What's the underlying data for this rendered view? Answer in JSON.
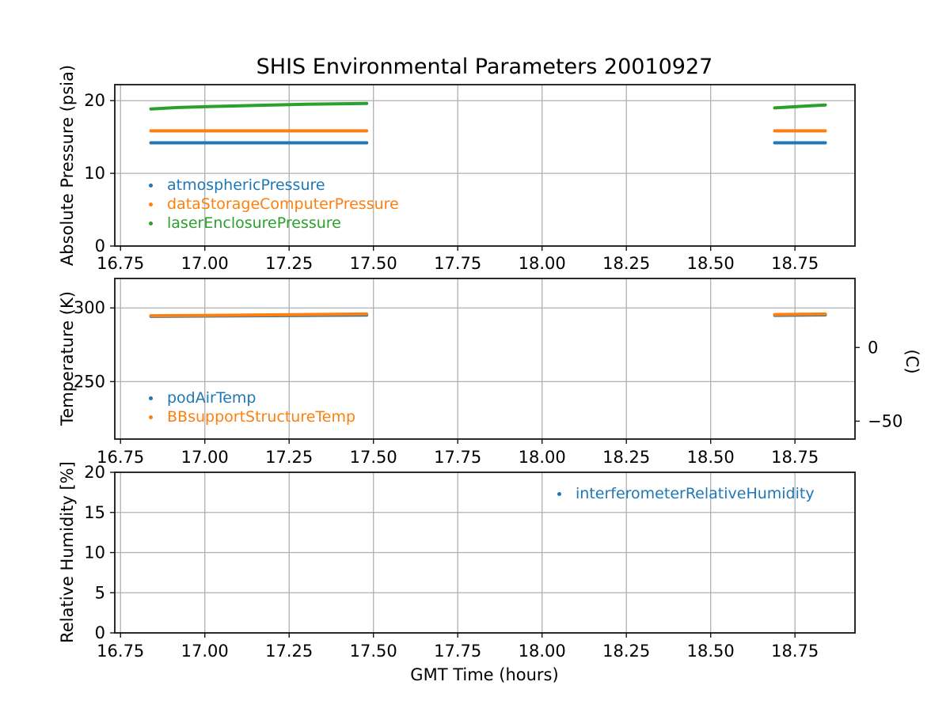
{
  "figure": {
    "title": "SHIS Environmental Parameters 20010927",
    "xlabel": "GMT Time (hours)",
    "background": "#ffffff",
    "grid_color": "#b0b0b0",
    "spine_color": "#141414"
  },
  "chart_data": [
    {
      "id": "pressure",
      "type": "scatter",
      "title": "SHIS Environmental Parameters 20010927",
      "ylabel": "Absolute Pressure (psia)",
      "xlim": [
        16.733,
        18.928
      ],
      "ylim": [
        0,
        22.2
      ],
      "grid": true,
      "legend_location": "lower left inside",
      "xticks": [
        {
          "label": "16.75",
          "value": 16.75
        },
        {
          "label": "17.00",
          "value": 17.0
        },
        {
          "label": "17.25",
          "value": 17.25
        },
        {
          "label": "17.50",
          "value": 17.5
        },
        {
          "label": "17.75",
          "value": 17.75
        },
        {
          "label": "18.00",
          "value": 18.0
        },
        {
          "label": "18.25",
          "value": 18.25
        },
        {
          "label": "18.50",
          "value": 18.5
        },
        {
          "label": "18.75",
          "value": 18.75
        }
      ],
      "yticks": [
        {
          "label": "0",
          "value": 0
        },
        {
          "label": "10",
          "value": 10
        },
        {
          "label": "20",
          "value": 20
        }
      ],
      "series": [
        {
          "name": "atmosphericPressure",
          "color": "#1f77b4",
          "marker": "dot",
          "segments": [
            [
              [
                16.84,
                14.2
              ],
              [
                17.48,
                14.2
              ]
            ],
            [
              [
                18.69,
                14.2
              ],
              [
                18.84,
                14.2
              ]
            ]
          ]
        },
        {
          "name": "dataStorageComputerPressure",
          "color": "#ff7f0e",
          "marker": "dot",
          "segments": [
            [
              [
                16.84,
                15.85
              ],
              [
                17.48,
                15.85
              ]
            ],
            [
              [
                18.69,
                15.85
              ],
              [
                18.84,
                15.85
              ]
            ]
          ]
        },
        {
          "name": "laserEnclosurePressure",
          "color": "#2ca02c",
          "marker": "dot",
          "segments": [
            [
              [
                16.84,
                18.85
              ],
              [
                16.92,
                19.05
              ],
              [
                17.02,
                19.2
              ],
              [
                17.15,
                19.35
              ],
              [
                17.3,
                19.5
              ],
              [
                17.48,
                19.62
              ]
            ],
            [
              [
                18.69,
                19.0
              ],
              [
                18.76,
                19.2
              ],
              [
                18.84,
                19.4
              ]
            ]
          ]
        }
      ]
    },
    {
      "id": "temperature",
      "type": "scatter",
      "ylabel": "Temperature (K)",
      "ylabel_right": "(C)",
      "xlim": [
        16.733,
        18.928
      ],
      "ylim": [
        211,
        320
      ],
      "grid": true,
      "legend_location": "lower left inside",
      "xticks": [
        {
          "label": "16.75",
          "value": 16.75
        },
        {
          "label": "17.00",
          "value": 17.0
        },
        {
          "label": "17.25",
          "value": 17.25
        },
        {
          "label": "17.50",
          "value": 17.5
        },
        {
          "label": "17.75",
          "value": 17.75
        },
        {
          "label": "18.00",
          "value": 18.0
        },
        {
          "label": "18.25",
          "value": 18.25
        },
        {
          "label": "18.50",
          "value": 18.5
        },
        {
          "label": "18.75",
          "value": 18.75
        }
      ],
      "yticks": [
        {
          "label": "250",
          "value": 250
        },
        {
          "label": "300",
          "value": 300
        }
      ],
      "yticks_right": [
        {
          "label": "0",
          "kelvin": 273.15
        },
        {
          "label": "−50",
          "kelvin": 223.15
        }
      ],
      "series": [
        {
          "name": "podAirTemp",
          "color": "#1f77b4",
          "marker": "dot",
          "segments": [
            [
              [
                16.84,
                294.3
              ],
              [
                17.1,
                294.6
              ],
              [
                17.48,
                295.2
              ]
            ],
            [
              [
                18.69,
                295.0
              ],
              [
                18.84,
                295.3
              ]
            ]
          ]
        },
        {
          "name": "BBsupportStructureTemp",
          "color": "#ff7f0e",
          "marker": "dot",
          "segments": [
            [
              [
                16.84,
                294.7
              ],
              [
                17.1,
                295.1
              ],
              [
                17.48,
                295.9
              ]
            ],
            [
              [
                18.69,
                295.5
              ],
              [
                18.84,
                295.9
              ]
            ]
          ]
        }
      ]
    },
    {
      "id": "humidity",
      "type": "scatter",
      "ylabel": "Relative Humidity [%]",
      "xlabel": "GMT Time (hours)",
      "xlim": [
        16.733,
        18.928
      ],
      "ylim": [
        0,
        20
      ],
      "grid": true,
      "legend_location": "upper right inside",
      "note": "no data points visible within plotted range",
      "xticks": [
        {
          "label": "16.75",
          "value": 16.75
        },
        {
          "label": "17.00",
          "value": 17.0
        },
        {
          "label": "17.25",
          "value": 17.25
        },
        {
          "label": "17.50",
          "value": 17.5
        },
        {
          "label": "17.75",
          "value": 17.75
        },
        {
          "label": "18.00",
          "value": 18.0
        },
        {
          "label": "18.25",
          "value": 18.25
        },
        {
          "label": "18.50",
          "value": 18.5
        },
        {
          "label": "18.75",
          "value": 18.75
        }
      ],
      "yticks": [
        {
          "label": "0",
          "value": 0
        },
        {
          "label": "5",
          "value": 5
        },
        {
          "label": "10",
          "value": 10
        },
        {
          "label": "15",
          "value": 15
        },
        {
          "label": "20",
          "value": 20
        }
      ],
      "series": [
        {
          "name": "interferometerRelativeHumidity",
          "color": "#1f77b4",
          "marker": "dot",
          "segments": []
        }
      ]
    }
  ]
}
